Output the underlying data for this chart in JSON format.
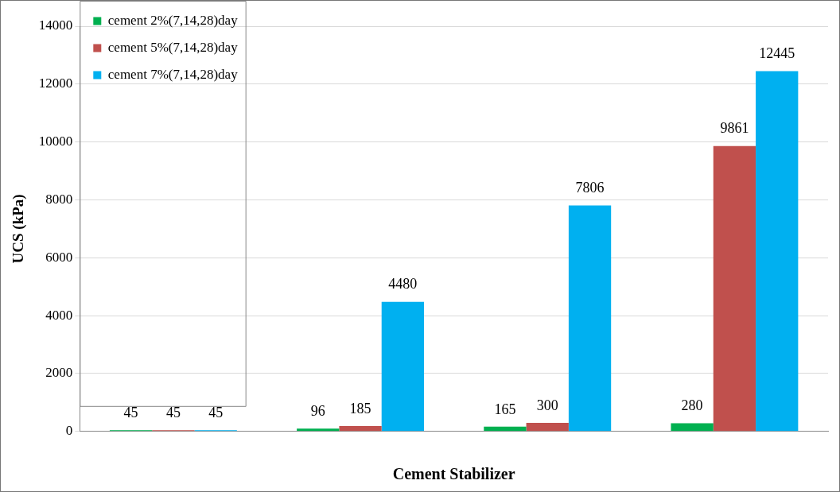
{
  "chart_data": {
    "type": "bar",
    "xlabel": "Cement Stabilizer",
    "ylabel": "UCS (kPa)",
    "categories": [
      null,
      null,
      null,
      null
    ],
    "series": [
      {
        "name": "cement 2%(7,14,28)day",
        "color": "#00b050",
        "values": [
          45,
          96,
          165,
          280
        ]
      },
      {
        "name": "cement 5%(7,14,28)day",
        "color": "#c0504d",
        "values": [
          45,
          185,
          300,
          9861
        ]
      },
      {
        "name": "cement 7%(7,14,28)day",
        "color": "#00b0f0",
        "values": [
          45,
          4480,
          7806,
          12445
        ]
      }
    ],
    "ylim": [
      0,
      14000
    ],
    "yticks": [
      0,
      2000,
      4000,
      6000,
      8000,
      10000,
      12000,
      14000
    ],
    "grid": "y",
    "legend": "top left",
    "data_labels": true
  }
}
